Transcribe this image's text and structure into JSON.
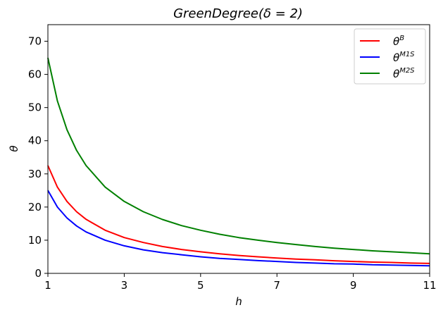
{
  "chart_data": {
    "type": "line",
    "title": "GreenDegree(δ = 2)",
    "xlabel": "h",
    "ylabel": "θ",
    "xlim": [
      1,
      11
    ],
    "ylim": [
      0,
      75
    ],
    "xticks": [
      "1",
      "3",
      "5",
      "7",
      "9",
      "11"
    ],
    "yticks": [
      "0",
      "10",
      "20",
      "30",
      "40",
      "50",
      "60",
      "70"
    ],
    "grid": false,
    "legend_position": "top-right",
    "x": [
      1,
      1.25,
      1.5,
      1.75,
      2,
      2.5,
      3,
      3.5,
      4,
      4.5,
      5,
      5.5,
      6,
      6.5,
      7,
      7.5,
      8,
      8.5,
      9,
      9.5,
      10,
      10.5,
      11
    ],
    "series": [
      {
        "name": "θ",
        "name_sup": "B",
        "color": "#ff0000",
        "values": [
          32.5,
          26.0,
          21.7,
          18.6,
          16.3,
          13.0,
          10.8,
          9.3,
          8.1,
          7.2,
          6.5,
          5.9,
          5.4,
          5.0,
          4.6,
          4.3,
          4.1,
          3.8,
          3.6,
          3.4,
          3.3,
          3.1,
          3.0
        ]
      },
      {
        "name": "θ",
        "name_sup": "M1S",
        "color": "#0000ff",
        "values": [
          25.0,
          20.0,
          16.7,
          14.3,
          12.5,
          10.0,
          8.3,
          7.1,
          6.25,
          5.6,
          5.0,
          4.5,
          4.2,
          3.85,
          3.6,
          3.3,
          3.1,
          2.9,
          2.8,
          2.6,
          2.5,
          2.4,
          2.3
        ]
      },
      {
        "name": "θ",
        "name_sup": "M2S",
        "color": "#008000",
        "values": [
          65.0,
          52.0,
          43.3,
          37.1,
          32.5,
          26.0,
          21.7,
          18.6,
          16.25,
          14.4,
          13.0,
          11.8,
          10.8,
          10.0,
          9.3,
          8.7,
          8.1,
          7.6,
          7.2,
          6.8,
          6.5,
          6.2,
          5.9
        ]
      }
    ]
  }
}
